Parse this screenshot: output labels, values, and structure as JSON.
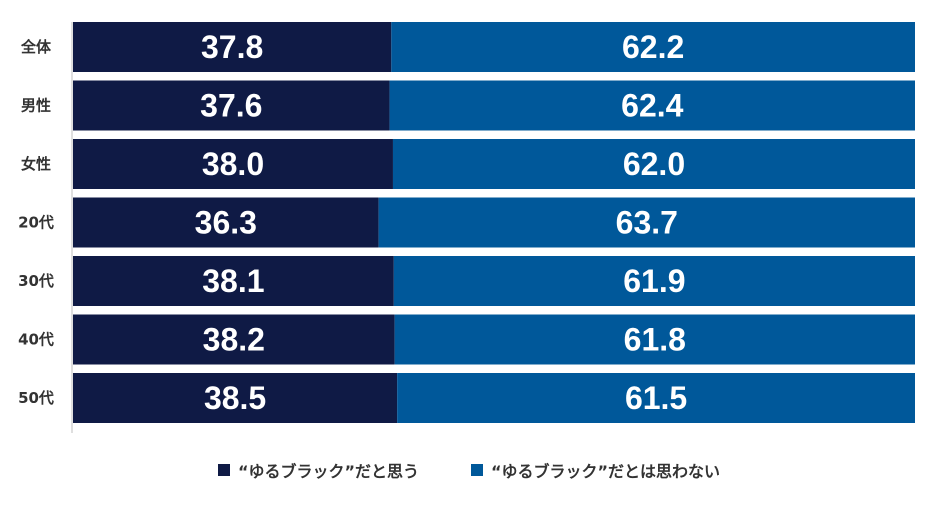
{
  "chart_data": {
    "type": "bar",
    "orientation": "horizontal",
    "stacked": "100%",
    "categories": [
      "全体",
      "男性",
      "女性",
      "20代",
      "30代",
      "40代",
      "50代"
    ],
    "series": [
      {
        "name": "“ゆるブラック”だと思う",
        "color": "#0f1a45",
        "values": [
          37.8,
          37.6,
          38.0,
          36.3,
          38.1,
          38.2,
          38.5
        ]
      },
      {
        "name": "“ゆるブラック”だとは思わない",
        "color": "#00589a",
        "values": [
          62.2,
          62.4,
          62.0,
          63.7,
          61.9,
          61.8,
          61.5
        ]
      }
    ],
    "value_labels": [
      [
        "37.8",
        "37.6",
        "38.0",
        "36.3",
        "38.1",
        "38.2",
        "38.5"
      ],
      [
        "62.2",
        "62.4",
        "62.0",
        "63.7",
        "61.9",
        "61.8",
        "61.5"
      ]
    ],
    "xlim": [
      0,
      100
    ],
    "grid": false,
    "legend_position": "bottom"
  }
}
